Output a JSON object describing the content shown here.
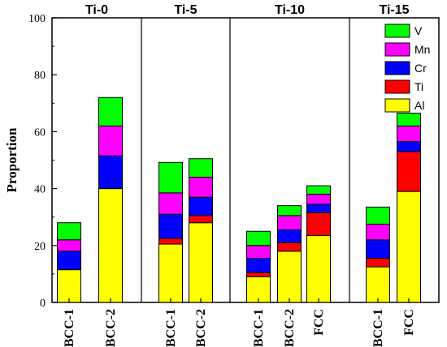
{
  "chart_data": {
    "type": "bar",
    "stacked": true,
    "ylabel": "Proportion",
    "ylim": [
      0,
      100
    ],
    "yticks": [
      0,
      20,
      40,
      60,
      80,
      100
    ],
    "legend_position": "top-right",
    "groups": [
      {
        "title": "Ti-0",
        "bars": [
          {
            "label": "BCC-1",
            "values": {
              "Al": 11.5,
              "Ti": 0,
              "Cr": 6.5,
              "Mn": 4,
              "V": 6
            }
          },
          {
            "label": "BCC-2",
            "values": {
              "Al": 40,
              "Ti": 0,
              "Cr": 11.5,
              "Mn": 10.5,
              "V": 10
            }
          }
        ]
      },
      {
        "title": "Ti-5",
        "bars": [
          {
            "label": "BCC-1",
            "values": {
              "Al": 20.5,
              "Ti": 2,
              "Cr": 8.5,
              "Mn": 7.5,
              "V": 10.7
            }
          },
          {
            "label": "BCC-2",
            "values": {
              "Al": 28,
              "Ti": 2.5,
              "Cr": 6.5,
              "Mn": 7,
              "V": 6.5
            }
          }
        ]
      },
      {
        "title": "Ti-10",
        "bars": [
          {
            "label": "BCC-1",
            "values": {
              "Al": 9,
              "Ti": 1.5,
              "Cr": 5,
              "Mn": 4.5,
              "V": 5
            }
          },
          {
            "label": "BCC-2",
            "values": {
              "Al": 18,
              "Ti": 3,
              "Cr": 4.5,
              "Mn": 5,
              "V": 3.5
            }
          },
          {
            "label": "FCC",
            "values": {
              "Al": 23.5,
              "Ti": 8,
              "Cr": 3,
              "Mn": 3.5,
              "V": 3
            }
          }
        ]
      },
      {
        "title": "Ti-15",
        "bars": [
          {
            "label": "BCC-1",
            "values": {
              "Al": 12.5,
              "Ti": 3,
              "Cr": 6.5,
              "Mn": 5.5,
              "V": 6
            }
          },
          {
            "label": "FCC",
            "values": {
              "Al": 39,
              "Ti": 14,
              "Cr": 3.5,
              "Mn": 5.5,
              "V": 4.5
            }
          }
        ]
      }
    ],
    "series": [
      {
        "name": "Al",
        "color": "#ffff00"
      },
      {
        "name": "Ti",
        "color": "#ff0000"
      },
      {
        "name": "Cr",
        "color": "#0000ff"
      },
      {
        "name": "Mn",
        "color": "#ff00ff"
      },
      {
        "name": "V",
        "color": "#00ff00"
      }
    ]
  }
}
